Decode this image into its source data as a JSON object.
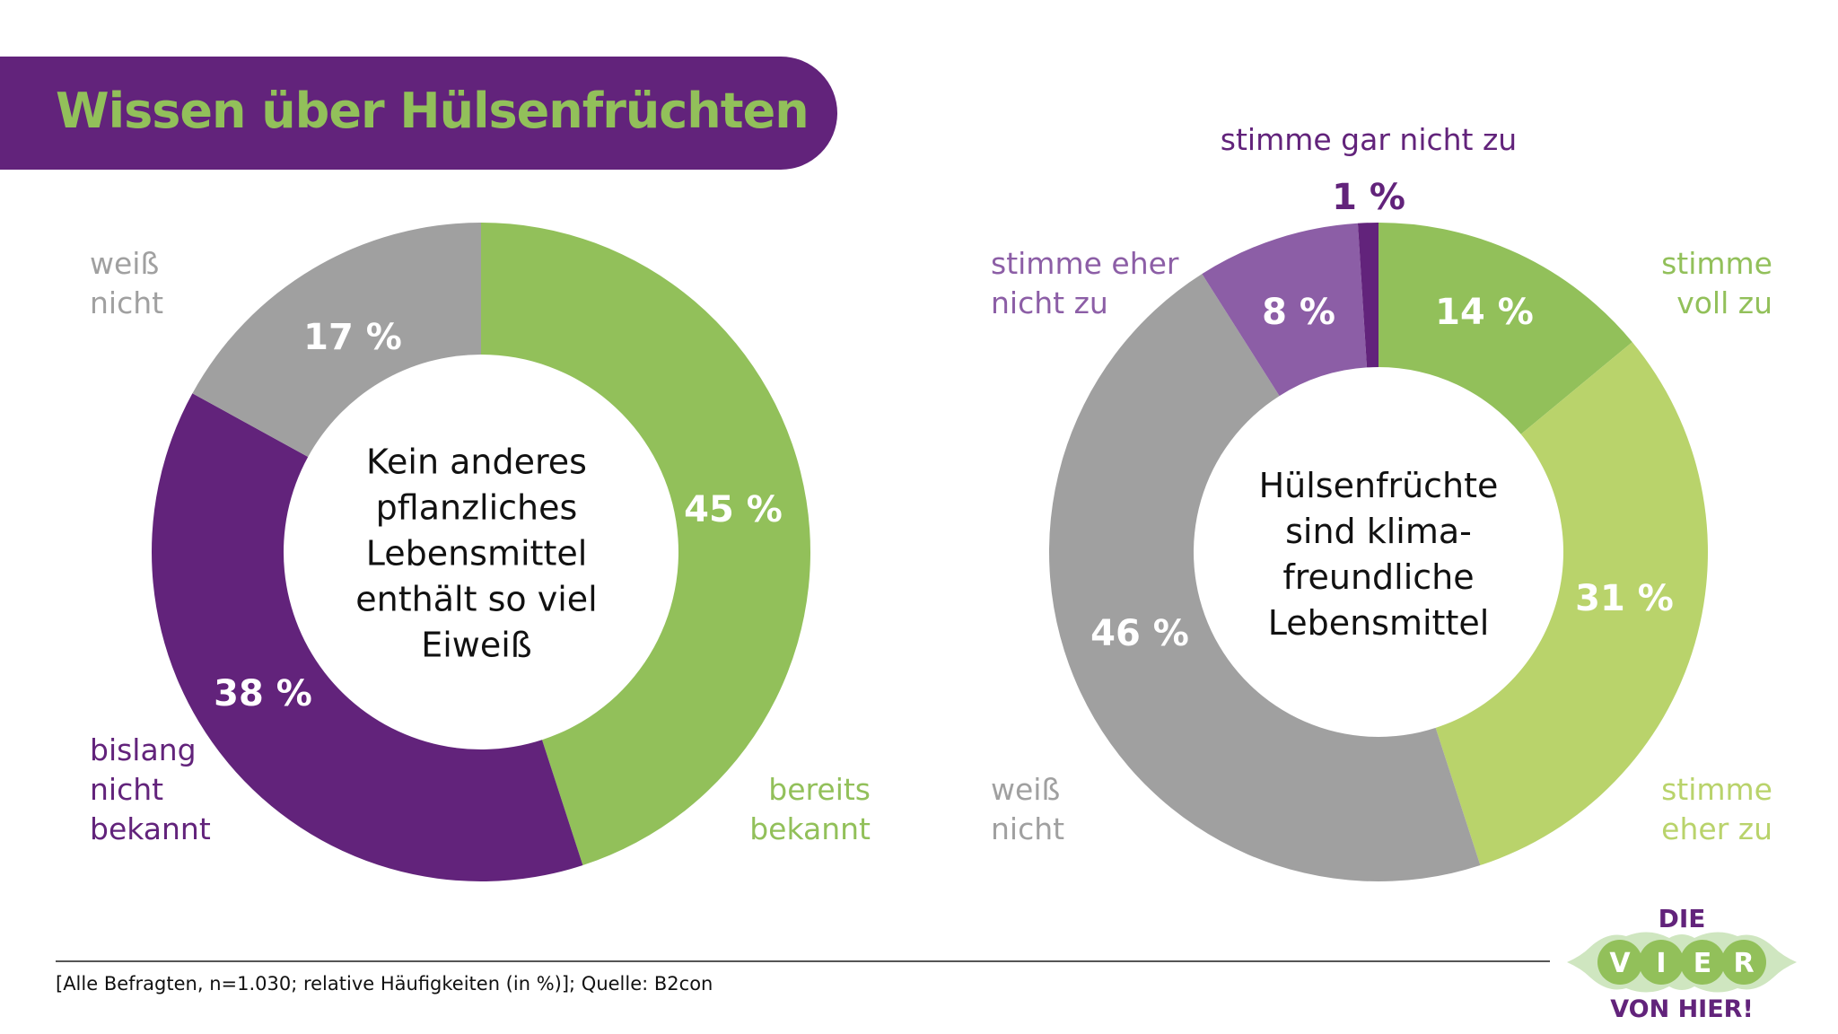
{
  "title": "Wissen über Hülsenfrüchten",
  "colors": {
    "purple": "#62237b",
    "green": "#92c05a",
    "light_green": "#b9d36b",
    "gray": "#a0a0a0",
    "lavender": "#8c5ea6"
  },
  "chart_data": [
    {
      "type": "pie",
      "donut": true,
      "title": "Kein anderes pflanzliches Lebensmittel enthält so viel Eiweiß",
      "title_lines": [
        "Kein anderes",
        "pflanzliches",
        "Lebensmittel",
        "enthält so viel",
        "Eiweiß"
      ],
      "slices": [
        {
          "label": "bereits bekannt",
          "lines": [
            "bereits",
            "bekannt"
          ],
          "value": 45,
          "display": "45 %",
          "color": "#92c05a"
        },
        {
          "label": "bislang nicht bekannt",
          "lines": [
            "bislang",
            "nicht",
            "bekannt"
          ],
          "value": 38,
          "display": "38 %",
          "color": "#62237b"
        },
        {
          "label": "weiß nicht",
          "lines": [
            "weiß",
            "nicht"
          ],
          "value": 17,
          "display": "17 %",
          "color": "#a0a0a0"
        }
      ]
    },
    {
      "type": "pie",
      "donut": true,
      "title": "Hülsenfrüchte sind klima-freundliche Lebensmittel",
      "title_lines": [
        "Hülsenfrüchte",
        "sind klima-",
        "freundliche",
        "Lebensmittel"
      ],
      "slices": [
        {
          "label": "stimme voll zu",
          "lines": [
            "stimme",
            "voll zu"
          ],
          "value": 14,
          "display": "14 %",
          "color": "#92c05a"
        },
        {
          "label": "stimme eher zu",
          "lines": [
            "stimme",
            "eher zu"
          ],
          "value": 31,
          "display": "31 %",
          "color": "#b9d36b"
        },
        {
          "label": "weiß nicht",
          "lines": [
            "weiß",
            "nicht"
          ],
          "value": 46,
          "display": "46 %",
          "color": "#a0a0a0"
        },
        {
          "label": "stimme eher nicht zu",
          "lines": [
            "stimme eher",
            "nicht zu"
          ],
          "value": 8,
          "display": "8 %",
          "color": "#8c5ea6"
        },
        {
          "label": "stimme gar nicht zu",
          "lines": [
            "stimme gar nicht zu"
          ],
          "value": 1,
          "display": "1 %",
          "color": "#62237b"
        }
      ]
    }
  ],
  "footer": {
    "source": "[Alle Befragten, n=1.030; relative Häufigkeiten (in %)]; Quelle: B2con"
  },
  "logo": {
    "top": "DIE",
    "middle": [
      "V",
      "I",
      "E",
      "R"
    ],
    "bottom": "VON HIER!"
  }
}
